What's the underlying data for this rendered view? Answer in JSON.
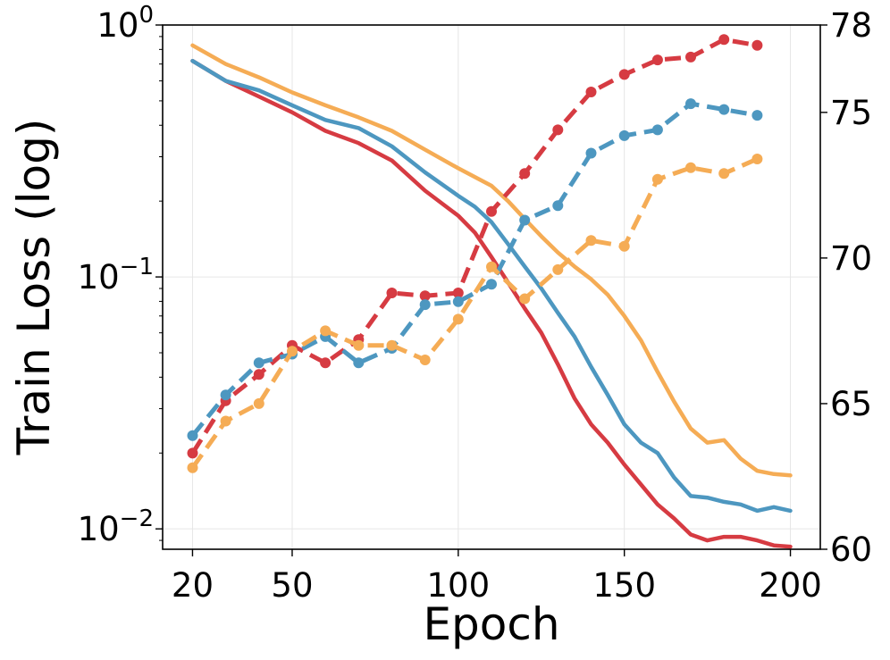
{
  "chart_data": {
    "type": "line",
    "xlabel": "Epoch",
    "ylabel": "Train Loss (log)",
    "xlim": [
      11,
      209
    ],
    "x_ticks": [
      "20",
      "50",
      "100",
      "150",
      "200"
    ],
    "x_tick_values": [
      20,
      50,
      100,
      150,
      200
    ],
    "y_left": {
      "scale": "log",
      "lim": [
        0.0083,
        1.0
      ],
      "major_ticks": [
        {
          "value": 1,
          "base": "10",
          "exp": "0"
        },
        {
          "value": 0.1,
          "base": "10",
          "exp": "−1"
        },
        {
          "value": 0.01,
          "base": "10",
          "exp": "−2"
        }
      ]
    },
    "y_right": {
      "scale": "linear",
      "lim": [
        60,
        78
      ],
      "ticks": [
        "60",
        "65",
        "70",
        "75",
        "78"
      ],
      "tick_values": [
        60,
        65,
        70,
        75,
        78
      ]
    },
    "colors": {
      "red": "#d63b42",
      "blue": "#4d97c0",
      "orange": "#f5ac55"
    },
    "loss_series": [
      {
        "name": "red",
        "color": "#d63b42",
        "axis": "left",
        "style": "solid",
        "x": [
          20,
          30,
          40,
          50,
          60,
          70,
          80,
          90,
          100,
          105,
          110,
          115,
          120,
          125,
          130,
          135,
          140,
          145,
          150,
          155,
          160,
          165,
          170,
          175,
          180,
          185,
          190,
          195,
          200
        ],
        "y": [
          0.72,
          0.6,
          0.52,
          0.45,
          0.38,
          0.34,
          0.29,
          0.22,
          0.175,
          0.15,
          0.12,
          0.095,
          0.075,
          0.06,
          0.045,
          0.033,
          0.026,
          0.022,
          0.018,
          0.015,
          0.0125,
          0.011,
          0.0095,
          0.009,
          0.0093,
          0.0093,
          0.009,
          0.0086,
          0.0085
        ]
      },
      {
        "name": "blue",
        "color": "#4d97c0",
        "axis": "left",
        "style": "solid",
        "x": [
          20,
          30,
          40,
          50,
          60,
          70,
          80,
          90,
          100,
          105,
          110,
          115,
          120,
          125,
          130,
          135,
          140,
          145,
          150,
          155,
          160,
          165,
          170,
          175,
          180,
          185,
          190,
          195,
          200
        ],
        "y": [
          0.72,
          0.6,
          0.55,
          0.48,
          0.42,
          0.39,
          0.33,
          0.26,
          0.21,
          0.19,
          0.165,
          0.135,
          0.11,
          0.09,
          0.072,
          0.058,
          0.044,
          0.034,
          0.026,
          0.022,
          0.02,
          0.016,
          0.0135,
          0.0133,
          0.0128,
          0.0125,
          0.0118,
          0.0122,
          0.0118
        ]
      },
      {
        "name": "orange",
        "color": "#f5ac55",
        "axis": "left",
        "style": "solid",
        "x": [
          20,
          30,
          40,
          50,
          60,
          70,
          80,
          90,
          100,
          110,
          115,
          120,
          125,
          130,
          135,
          140,
          145,
          150,
          155,
          160,
          165,
          170,
          175,
          180,
          185,
          190,
          195,
          200
        ],
        "y": [
          0.83,
          0.7,
          0.62,
          0.54,
          0.48,
          0.43,
          0.38,
          0.32,
          0.27,
          0.23,
          0.2,
          0.17,
          0.145,
          0.125,
          0.11,
          0.098,
          0.085,
          0.07,
          0.056,
          0.042,
          0.032,
          0.025,
          0.022,
          0.0225,
          0.019,
          0.017,
          0.0165,
          0.0163
        ]
      }
    ],
    "accuracy_series": [
      {
        "name": "red",
        "color": "#d63b42",
        "axis": "right",
        "style": "dashed",
        "x": [
          20,
          30,
          40,
          50,
          60,
          70,
          80,
          90,
          100,
          110,
          120,
          130,
          140,
          150,
          160,
          170,
          180,
          190
        ],
        "y": [
          63.3,
          65.1,
          66.0,
          67.0,
          66.4,
          67.2,
          68.8,
          68.7,
          68.8,
          71.6,
          72.9,
          74.4,
          75.7,
          76.3,
          76.8,
          76.9,
          77.5,
          77.3
        ]
      },
      {
        "name": "blue",
        "color": "#4d97c0",
        "axis": "right",
        "style": "dashed",
        "x": [
          20,
          30,
          40,
          50,
          60,
          70,
          80,
          90,
          100,
          110,
          120,
          130,
          140,
          150,
          160,
          170,
          180,
          190
        ],
        "y": [
          63.9,
          65.3,
          66.4,
          66.7,
          67.3,
          66.4,
          66.9,
          68.4,
          68.5,
          69.1,
          71.3,
          71.8,
          73.6,
          74.2,
          74.4,
          75.3,
          75.1,
          74.9
        ]
      },
      {
        "name": "orange",
        "color": "#f5ac55",
        "axis": "right",
        "style": "dashed",
        "x": [
          20,
          30,
          40,
          50,
          60,
          70,
          80,
          90,
          100,
          110,
          120,
          130,
          140,
          150,
          160,
          170,
          180,
          190
        ],
        "y": [
          62.8,
          64.4,
          65.0,
          66.8,
          67.5,
          67.0,
          67.0,
          66.5,
          67.9,
          69.7,
          68.6,
          69.6,
          70.6,
          70.4,
          72.7,
          73.1,
          72.9,
          73.4
        ]
      }
    ]
  }
}
